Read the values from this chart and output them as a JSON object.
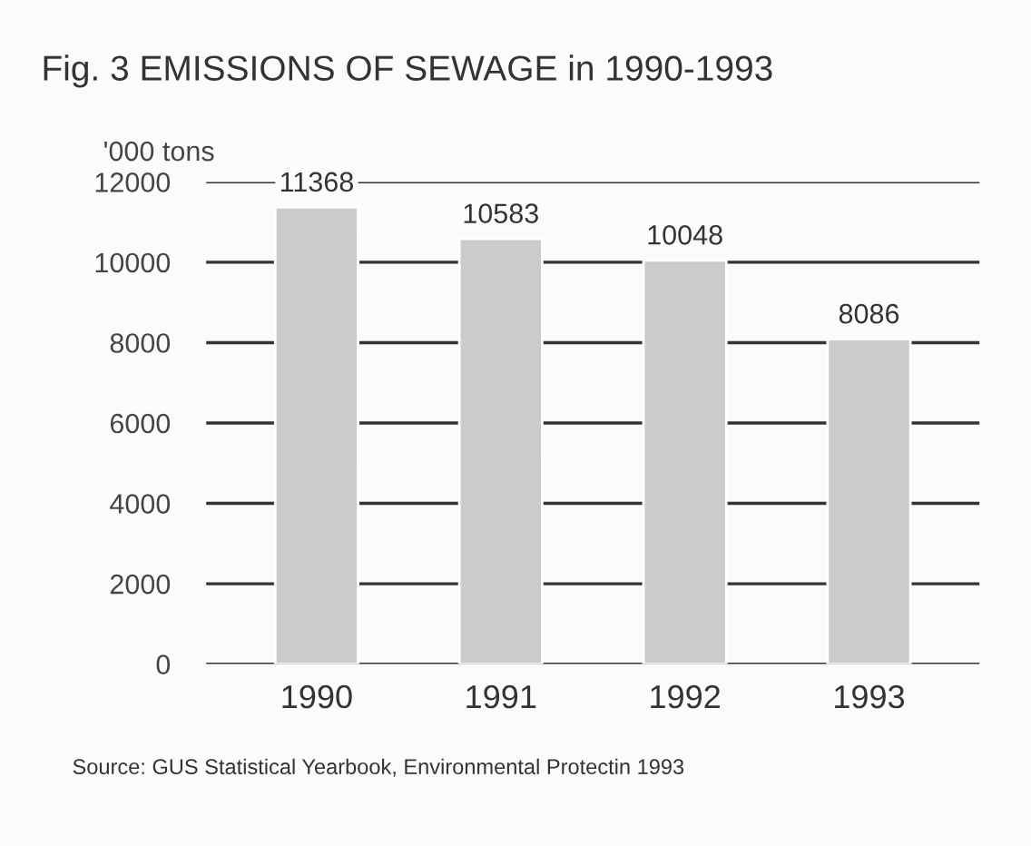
{
  "chart_data": {
    "type": "bar",
    "title": "Fig. 3 EMISSIONS OF SEWAGE in 1990-1993",
    "ylabel": "'000 tons",
    "categories": [
      "1990",
      "1991",
      "1992",
      "1993"
    ],
    "values": [
      11368,
      10583,
      10048,
      8086
    ],
    "color": "#cbcbcb",
    "ylim": [
      0,
      12000
    ],
    "yticks": [
      0,
      2000,
      4000,
      6000,
      8000,
      10000,
      12000
    ],
    "grid": "y",
    "data_labels": true,
    "annotations": [
      "Source: GUS Statistical Yearbook, Environmental Protectin 1993"
    ]
  }
}
